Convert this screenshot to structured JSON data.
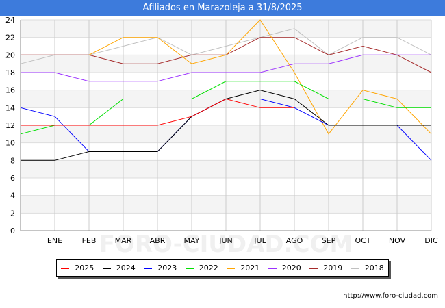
{
  "title": "Afiliados en Marazoleja a 31/8/2025",
  "source": "http://www.foro-ciudad.com",
  "watermark": "FORO-CIUDAD.COM",
  "chart_data": {
    "type": "line",
    "title": "Afiliados en Marazoleja a 31/8/2025",
    "xlabel": "",
    "ylabel": "",
    "categories": [
      "",
      "ENE",
      "FEB",
      "MAR",
      "ABR",
      "MAY",
      "JUN",
      "JUL",
      "AGO",
      "SEP",
      "OCT",
      "NOV",
      "DIC"
    ],
    "ylim": [
      0,
      24
    ],
    "yticks": [
      0,
      2,
      4,
      6,
      8,
      10,
      12,
      14,
      16,
      18,
      20,
      22,
      24
    ],
    "grid": true,
    "legend_position": "bottom",
    "series": [
      {
        "name": "2018",
        "color": "#c0c0c0",
        "values": [
          19,
          20,
          20,
          21,
          22,
          20,
          21,
          22,
          23,
          20,
          22,
          22,
          20
        ]
      },
      {
        "name": "2019",
        "color": "#a52a2a",
        "values": [
          20,
          20,
          20,
          19,
          19,
          20,
          20,
          22,
          22,
          20,
          21,
          20,
          18
        ]
      },
      {
        "name": "2020",
        "color": "#9b30ff",
        "values": [
          18,
          18,
          17,
          17,
          17,
          18,
          18,
          18,
          19,
          19,
          20,
          20,
          20
        ]
      },
      {
        "name": "2021",
        "color": "#ffa500",
        "values": [
          null,
          null,
          20,
          22,
          22,
          19,
          20,
          24,
          18,
          11,
          16,
          15,
          11
        ]
      },
      {
        "name": "2022",
        "color": "#00e000",
        "values": [
          11,
          12,
          12,
          15,
          15,
          15,
          17,
          17,
          17,
          15,
          15,
          14,
          14
        ]
      },
      {
        "name": "2023",
        "color": "#0000ff",
        "values": [
          14,
          13,
          9,
          9,
          9,
          13,
          15,
          15,
          14,
          12,
          12,
          12,
          8
        ]
      },
      {
        "name": "2024",
        "color": "#000000",
        "values": [
          8,
          8,
          9,
          9,
          9,
          13,
          15,
          16,
          15,
          12,
          12,
          12,
          12
        ]
      },
      {
        "name": "2025",
        "color": "#ff0000",
        "values": [
          12,
          12,
          12,
          12,
          12,
          13,
          15,
          14,
          14,
          null,
          null,
          null,
          null
        ]
      }
    ],
    "legend_order": [
      "2025",
      "2024",
      "2023",
      "2022",
      "2021",
      "2020",
      "2019",
      "2018"
    ]
  }
}
